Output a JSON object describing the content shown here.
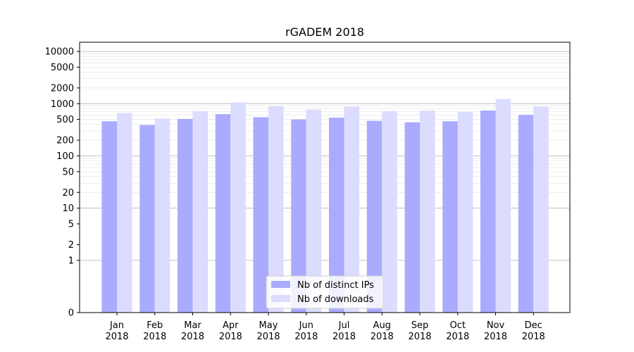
{
  "chart_data": {
    "type": "bar",
    "title": "rGADEM 2018",
    "xlabel": "",
    "ylabel": "",
    "yscale": "symlog",
    "categories": [
      {
        "month": "Jan",
        "year": "2018"
      },
      {
        "month": "Feb",
        "year": "2018"
      },
      {
        "month": "Mar",
        "year": "2018"
      },
      {
        "month": "Apr",
        "year": "2018"
      },
      {
        "month": "May",
        "year": "2018"
      },
      {
        "month": "Jun",
        "year": "2018"
      },
      {
        "month": "Jul",
        "year": "2018"
      },
      {
        "month": "Aug",
        "year": "2018"
      },
      {
        "month": "Sep",
        "year": "2018"
      },
      {
        "month": "Oct",
        "year": "2018"
      },
      {
        "month": "Nov",
        "year": "2018"
      },
      {
        "month": "Dec",
        "year": "2018"
      }
    ],
    "series": [
      {
        "name": "Nb of distinct IPs",
        "color": "#aaaaff",
        "values": [
          460,
          390,
          510,
          630,
          550,
          500,
          540,
          470,
          440,
          460,
          740,
          610
        ]
      },
      {
        "name": "Nb of downloads",
        "color": "#dcdcff",
        "values": [
          660,
          520,
          720,
          1060,
          890,
          770,
          880,
          720,
          740,
          710,
          1230,
          880
        ]
      }
    ],
    "yticks": [
      "0",
      "1",
      "2",
      "5",
      "10",
      "20",
      "50",
      "100",
      "200",
      "500",
      "1000",
      "2000",
      "5000",
      "10000"
    ],
    "ylim": [
      0,
      15000
    ],
    "grid": true,
    "legend_position": "lower center"
  }
}
